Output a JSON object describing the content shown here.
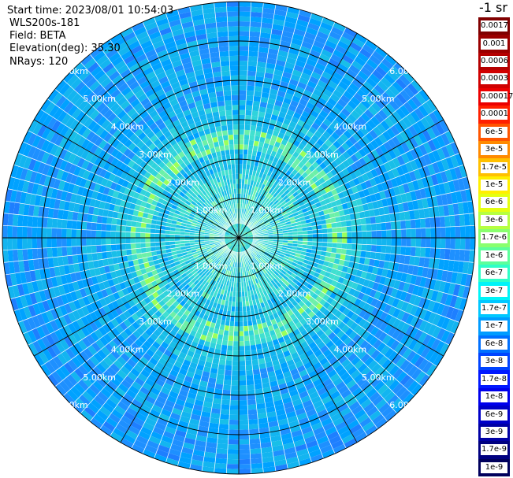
{
  "info": {
    "start_time": "Start time: 2023/08/01 10:54:03",
    "instrument": "WLS200s-181",
    "field": "Field: BETA",
    "elevation": "Elevation(deg): 35.30",
    "nrays": "NRays: 120"
  },
  "colorbar": {
    "title": "-1 sr",
    "labels": [
      "0.0017",
      "0.001",
      "0.0006",
      "0.0003",
      "0.00017",
      "0.0001",
      "6e-5",
      "3e-5",
      "1.7e-5",
      "1e-5",
      "6e-6",
      "3e-6",
      "1.7e-6",
      "1e-6",
      "6e-7",
      "3e-7",
      "1.7e-7",
      "1e-7",
      "6e-8",
      "3e-8",
      "1.7e-8",
      "1e-8",
      "6e-9",
      "3e-9",
      "1.7e-9",
      "1e-9"
    ],
    "colors": [
      "#800000",
      "#9a0000",
      "#b40000",
      "#d00000",
      "#ec0000",
      "#ff2000",
      "#ff5500",
      "#ff8a00",
      "#ffc000",
      "#ffef00",
      "#e4ff12",
      "#b6ff41",
      "#89ff6e",
      "#5cff9b",
      "#2fffc8",
      "#00f4f8",
      "#00c8ff",
      "#009cff",
      "#0070ff",
      "#0044ff",
      "#0018ff",
      "#0000ec",
      "#0000c8",
      "#0000a4",
      "#000080",
      "#00005c"
    ]
  },
  "chart_data": {
    "type": "polar-ppi",
    "field": "BETA",
    "rays": 120,
    "max_range_km": 6.0,
    "range_rings_km": [
      1,
      2,
      3,
      4,
      5,
      6
    ],
    "range_labels": [
      "1.00km",
      "2.00km",
      "3.00km",
      "4.00km",
      "5.00km",
      "6.00km"
    ],
    "spokes_deg": [
      0,
      30,
      60,
      90,
      120,
      150,
      180,
      210,
      240,
      270,
      300,
      330
    ],
    "dominant_colors": [
      "#1e90ff",
      "#00a2ff",
      "#18bfe8",
      "#40e0d0",
      "#7cfc00"
    ],
    "feature_ring_km": [
      2.2,
      2.8
    ]
  }
}
